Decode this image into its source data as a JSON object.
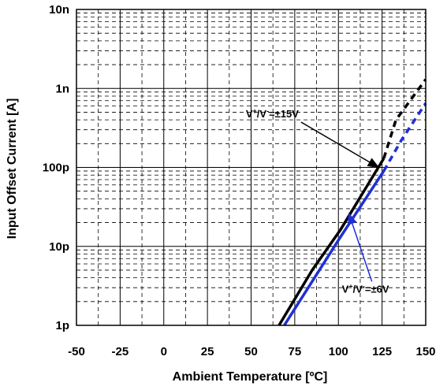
{
  "chart_data": {
    "type": "line",
    "xlabel": "Ambient Temperature [ºC]",
    "ylabel": "Input Offset Current [A]",
    "xlim": [
      -50,
      150
    ],
    "ylim": [
      1e-12,
      1e-08
    ],
    "yscale": "log",
    "grid": true,
    "x_tick_labels": [
      "-50",
      "-25",
      "0",
      "25",
      "50",
      "75",
      "100",
      "125",
      "150"
    ],
    "x_ticks": [
      -50,
      -25,
      0,
      25,
      50,
      75,
      100,
      125,
      150
    ],
    "y_tick_labels": [
      "1p",
      "10p",
      "100p",
      "1n",
      "10n"
    ],
    "y_ticks": [
      1e-12,
      1e-11,
      1e-10,
      1e-09,
      1e-08
    ],
    "series": [
      {
        "color": "#000000",
        "solid": {
          "x": [
            66,
            85,
            101,
            126
          ],
          "y": [
            1e-12,
            5e-12,
            1.6e-11,
            1.3e-10
          ]
        },
        "dashed": {
          "x": [
            126,
            133,
            150
          ],
          "y": [
            1.3e-10,
            4e-10,
            1.3e-09
          ]
        }
      },
      {
        "color": "#1f2fd6",
        "solid": {
          "x": [
            69,
            100,
            126
          ],
          "y": [
            1e-12,
            1.2e-11,
            9e-11
          ]
        },
        "dashed": {
          "x": [
            126,
            136,
            150
          ],
          "y": [
            9e-11,
            2.2e-10,
            6.5e-10
          ]
        }
      }
    ],
    "annotations": [
      {
        "text_main": "V",
        "sup1": "+",
        "text_mid": "/V",
        "sup2": "-",
        "text_end": "=±15V",
        "color": "#000000",
        "text_at": [
          47,
          4.3e-10
        ],
        "arrow_to": [
          123,
          1e-10
        ]
      },
      {
        "text_main": "V",
        "sup1": "+",
        "text_mid": "/V",
        "sup2": "-",
        "text_end": "=±6V",
        "color": "#1f2fd6",
        "text_at": [
          102,
          2.6e-12
        ],
        "arrow_to": [
          106,
          2.6e-11
        ]
      }
    ]
  }
}
